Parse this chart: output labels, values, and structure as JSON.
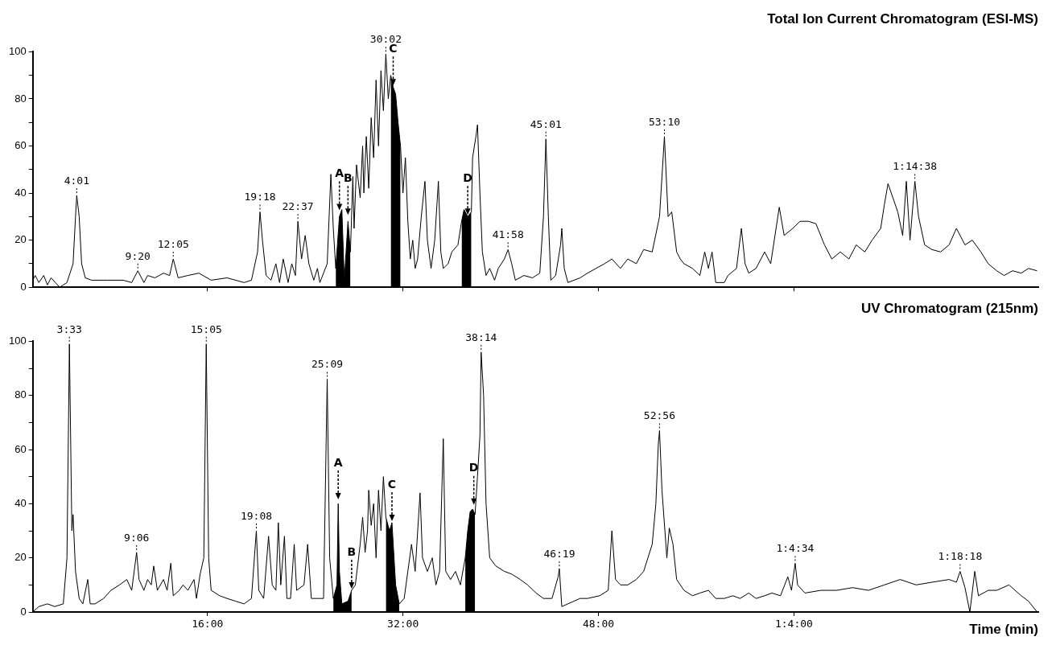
{
  "chart_data": [
    {
      "type": "line",
      "title": "Total Ion Current Chromatogram (ESI-MS)",
      "marker": "none",
      "tick_labels": "y",
      "xlim": [
        1.7,
        84
      ],
      "xticks": [
        {
          "value": 16,
          "label": null
        },
        {
          "value": 32,
          "label": null
        },
        {
          "value": 48,
          "label": null
        },
        {
          "value": 64,
          "label": null
        }
      ],
      "ylim": [
        0,
        100
      ],
      "yticks": [
        0,
        {
          "value": 10,
          "label": null
        },
        20,
        {
          "value": 30,
          "label": null
        },
        40,
        {
          "value": 50,
          "label": null
        },
        60,
        {
          "value": 70,
          "label": null
        },
        80,
        {
          "value": 90,
          "label": null
        },
        100
      ],
      "series": [
        {
          "type": "line",
          "color": "#000000",
          "x": [
            1.7,
            1.9,
            2.2,
            2.6,
            2.9,
            3.2,
            3.9,
            4.5,
            5.0,
            5.2,
            5.3,
            5.5,
            5.7,
            6.0,
            6.5,
            7.8,
            9.1,
            9.8,
            10.3,
            10.8,
            11.1,
            11.7,
            12.4,
            12.9,
            13.2,
            13.6,
            14.4,
            15.3,
            16.3,
            17.6,
            19.0,
            19.6,
            20.1,
            20.3,
            20.5,
            20.8,
            21.2,
            21.6,
            21.9,
            22.2,
            22.6,
            22.9,
            23.2,
            23.4,
            23.7,
            24.0,
            24.3,
            24.7,
            25.0,
            25.2,
            25.8,
            26.1,
            26.3,
            26.5,
            26.8,
            27.0,
            27.2,
            27.5,
            27.7,
            27.9,
            28.0,
            28.2,
            28.5,
            28.7,
            28.8,
            29.0,
            29.2,
            29.4,
            29.6,
            29.8,
            30.0,
            30.2,
            30.4,
            30.6,
            30.8,
            31.0,
            31.2,
            31.4,
            31.6,
            31.8,
            32.0,
            32.2,
            32.4,
            32.6,
            32.8,
            33.0,
            33.2,
            33.5,
            33.8,
            34.0,
            34.3,
            34.6,
            34.9,
            35.1,
            35.3,
            35.7,
            36.0,
            36.5,
            36.8,
            37.0,
            37.3,
            37.6,
            37.7,
            38.0,
            38.1,
            38.3,
            38.5,
            38.8,
            39.1,
            39.5,
            39.8,
            40.3,
            40.6,
            40.9,
            41.2,
            41.9,
            42.6,
            43.2,
            43.5,
            43.7,
            43.9,
            44.1,
            44.5,
            44.9,
            45.0,
            45.2,
            45.5,
            46.5,
            47.1,
            47.8,
            48.5,
            49.1,
            49.8,
            50.4,
            51.1,
            51.7,
            52.4,
            53.0,
            53.4,
            53.7,
            54.0,
            54.4,
            54.7,
            55.0,
            55.7,
            56.3,
            56.7,
            57.0,
            57.3,
            57.6,
            58.3,
            58.6,
            59.3,
            59.7,
            60.0,
            60.3,
            60.9,
            61.6,
            62.1,
            62.8,
            63.2,
            63.9,
            64.5,
            65.2,
            65.8,
            66.5,
            67.1,
            67.8,
            68.5,
            69.1,
            69.8,
            70.4,
            71.1,
            71.4,
            71.7,
            72.1,
            72.5,
            72.9,
            73.2,
            73.5,
            73.9,
            74.2,
            74.7,
            75.3,
            76.0,
            76.7,
            77.3,
            78.0,
            78.6,
            79.3,
            79.9,
            80.6,
            81.2,
            81.9,
            82.6,
            83.2,
            83.9
          ],
          "values": [
            3,
            5,
            2,
            5,
            1,
            4,
            0,
            2,
            10,
            30,
            39,
            30,
            10,
            4,
            3,
            3,
            3,
            2,
            7,
            2,
            5,
            4,
            6,
            5,
            12,
            4,
            5,
            6,
            3,
            4,
            2,
            3,
            15,
            32,
            20,
            5,
            3,
            10,
            2,
            12,
            2,
            10,
            5,
            28,
            12,
            22,
            10,
            3,
            8,
            2,
            10,
            48,
            25,
            8,
            30,
            33,
            3,
            28,
            15,
            47,
            25,
            52,
            38,
            60,
            40,
            64,
            42,
            72,
            55,
            88,
            60,
            92,
            75,
            99,
            80,
            90,
            85,
            82,
            70,
            60,
            40,
            55,
            28,
            12,
            20,
            8,
            12,
            30,
            45,
            20,
            8,
            20,
            45,
            15,
            8,
            10,
            15,
            18,
            28,
            33,
            30,
            32,
            55,
            65,
            69,
            40,
            15,
            5,
            8,
            3,
            8,
            12,
            16,
            10,
            3,
            5,
            4,
            6,
            30,
            63,
            30,
            3,
            5,
            18,
            25,
            8,
            2,
            4,
            6,
            8,
            10,
            12,
            8,
            12,
            10,
            16,
            15,
            30,
            64,
            30,
            32,
            15,
            12,
            10,
            8,
            5,
            15,
            8,
            15,
            2,
            2,
            5,
            8,
            25,
            10,
            6,
            8,
            15,
            10,
            34,
            22,
            25,
            28,
            28,
            27,
            18,
            12,
            15,
            12,
            18,
            15,
            20,
            25,
            35,
            44,
            38,
            32,
            22,
            45,
            20,
            45,
            30,
            18,
            16,
            15,
            18,
            25,
            18,
            20,
            15,
            10,
            7,
            5,
            7,
            6,
            8,
            7
          ]
        },
        {
          "type": "area",
          "color": "#000000",
          "x": [
            26.5,
            26.8,
            27.0,
            27.2,
            27.5,
            27.7
          ],
          "values": [
            8,
            30,
            33,
            3,
            28,
            15
          ]
        },
        {
          "type": "area",
          "color": "#000000",
          "x": [
            31.0,
            31.2,
            31.4,
            31.6,
            31.8
          ],
          "values": [
            90,
            85,
            82,
            70,
            60
          ]
        },
        {
          "type": "area",
          "color": "#000000",
          "x": [
            36.8,
            37.0,
            37.3,
            37.6
          ],
          "values": [
            28,
            33,
            30,
            32
          ]
        }
      ],
      "annotations": [
        {
          "text": "4:01",
          "x": 5.3,
          "y": 39
        },
        {
          "text": "9:20",
          "x": 10.3,
          "y": 7
        },
        {
          "text": "12:05",
          "x": 13.2,
          "y": 12
        },
        {
          "text": "19:18",
          "x": 20.3,
          "y": 32
        },
        {
          "text": "22:37",
          "x": 23.4,
          "y": 28
        },
        {
          "text": "30:02",
          "x": 30.6,
          "y": 99
        },
        {
          "text": "41:58",
          "x": 40.6,
          "y": 16
        },
        {
          "text": "45:01",
          "x": 43.7,
          "y": 63
        },
        {
          "text": "53:10",
          "x": 53.4,
          "y": 64
        },
        {
          "text": "1:14:38",
          "x": 73.9,
          "y": 45
        },
        {
          "text": "A",
          "x": 26.8,
          "y": 32
        },
        {
          "text": "B",
          "x": 27.5,
          "y": 30
        },
        {
          "text": "C",
          "x": 31.2,
          "y": 85
        },
        {
          "text": "D",
          "x": 37.3,
          "y": 30
        }
      ]
    },
    {
      "type": "line",
      "title": "UV Chromatogram (215nm)",
      "xlabel": "Time (min)",
      "marker": "none",
      "xlim": [
        1.7,
        84
      ],
      "xticks": [
        {
          "value": 16,
          "label": "16:00"
        },
        {
          "value": 32,
          "label": "32:00"
        },
        {
          "value": 48,
          "label": "48:00"
        },
        {
          "value": 64,
          "label": "1:4:00"
        }
      ],
      "ylim": [
        0,
        100
      ],
      "yticks": [
        0,
        {
          "value": 10,
          "label": null
        },
        20,
        {
          "value": 30,
          "label": null
        },
        40,
        {
          "value": 50,
          "label": null
        },
        60,
        {
          "value": 70,
          "label": null
        },
        80,
        {
          "value": 90,
          "label": null
        },
        100
      ],
      "series": [
        {
          "type": "line",
          "color": "#000000",
          "x": [
            1.7,
            2.2,
            2.9,
            3.5,
            4.2,
            4.5,
            4.7,
            4.9,
            5.0,
            5.2,
            5.5,
            5.8,
            6.2,
            6.4,
            6.8,
            7.5,
            8.1,
            8.8,
            9.4,
            9.8,
            10.2,
            10.4,
            10.8,
            11.1,
            11.4,
            11.6,
            11.9,
            12.4,
            12.7,
            13.0,
            13.2,
            13.7,
            14.0,
            14.4,
            14.9,
            15.1,
            15.4,
            15.7,
            15.9,
            16.1,
            16.3,
            17.0,
            17.6,
            18.3,
            19.0,
            19.6,
            20.0,
            20.2,
            20.6,
            21.0,
            21.3,
            21.6,
            21.8,
            22.0,
            22.3,
            22.5,
            22.8,
            23.1,
            23.3,
            23.9,
            24.2,
            24.5,
            24.9,
            25.5,
            25.8,
            26.0,
            26.3,
            26.6,
            26.7,
            26.8,
            27.0,
            27.5,
            27.8,
            28.1,
            28.5,
            28.7,
            28.9,
            29.1,
            29.2,
            29.4,
            29.6,
            29.8,
            30.0,
            30.2,
            30.4,
            30.6,
            30.9,
            31.1,
            31.4,
            31.7,
            32.1,
            32.4,
            32.7,
            33.0,
            33.4,
            33.6,
            34.0,
            34.4,
            34.7,
            35.0,
            35.3,
            35.5,
            35.9,
            36.3,
            36.7,
            37.1,
            37.3,
            37.5,
            37.7,
            37.9,
            38.1,
            38.3,
            38.4,
            38.6,
            38.8,
            39.1,
            39.6,
            40.3,
            40.9,
            41.6,
            42.2,
            42.9,
            43.5,
            44.2,
            44.7,
            44.8,
            45.0,
            45.5,
            46.5,
            47.1,
            48.1,
            48.8,
            49.1,
            49.4,
            49.8,
            50.4,
            51.1,
            51.7,
            52.4,
            52.7,
            52.9,
            53.0,
            53.2,
            53.6,
            53.8,
            54.1,
            54.4,
            55.0,
            55.7,
            56.3,
            57.0,
            57.6,
            58.3,
            59.0,
            59.6,
            60.3,
            60.9,
            61.6,
            62.2,
            62.9,
            63.5,
            63.8,
            64.1,
            64.3,
            64.9,
            66.2,
            67.5,
            68.8,
            70.1,
            71.4,
            72.7,
            74.0,
            75.3,
            76.7,
            77.3,
            77.6,
            78.0,
            78.4,
            78.8,
            79.1,
            79.9,
            80.6,
            81.6,
            82.6,
            83.2,
            83.9
          ],
          "values": [
            0,
            2,
            3,
            2,
            3,
            20,
            99,
            30,
            36,
            15,
            5,
            3,
            12,
            3,
            3,
            5,
            8,
            10,
            12,
            8,
            22,
            12,
            8,
            12,
            10,
            17,
            8,
            12,
            8,
            18,
            6,
            8,
            10,
            8,
            12,
            5,
            14,
            20,
            99,
            20,
            8,
            6,
            5,
            4,
            3,
            5,
            30,
            8,
            5,
            28,
            10,
            8,
            33,
            10,
            28,
            5,
            5,
            25,
            8,
            10,
            25,
            5,
            5,
            5,
            86,
            20,
            5,
            10,
            40,
            15,
            3,
            4,
            8,
            10,
            25,
            35,
            22,
            30,
            45,
            32,
            40,
            20,
            45,
            30,
            50,
            35,
            30,
            33,
            10,
            3,
            5,
            15,
            25,
            15,
            44,
            20,
            15,
            20,
            10,
            15,
            64,
            15,
            12,
            15,
            10,
            20,
            30,
            37,
            38,
            36,
            50,
            65,
            96,
            80,
            40,
            20,
            17,
            15,
            14,
            12,
            10,
            7,
            5,
            5,
            13,
            16,
            2,
            3,
            5,
            5,
            6,
            8,
            30,
            12,
            10,
            10,
            12,
            15,
            25,
            40,
            62,
            67,
            45,
            20,
            31,
            25,
            12,
            8,
            6,
            7,
            8,
            5,
            5,
            6,
            5,
            7,
            5,
            6,
            7,
            6,
            13,
            8,
            18,
            10,
            7,
            8,
            8,
            9,
            8,
            10,
            12,
            10,
            11,
            12,
            11,
            15,
            9,
            0,
            15,
            6,
            8,
            8,
            10,
            6,
            4,
            0
          ]
        },
        {
          "type": "area",
          "color": "#000000",
          "x": [
            26.3,
            26.6,
            26.7,
            26.8,
            27.0,
            27.5,
            27.8
          ],
          "values": [
            5,
            10,
            40,
            15,
            3,
            4,
            8
          ]
        },
        {
          "type": "area",
          "color": "#000000",
          "x": [
            30.6,
            30.9,
            31.1,
            31.4,
            31.7
          ],
          "values": [
            35,
            30,
            33,
            10,
            3
          ]
        },
        {
          "type": "area",
          "color": "#000000",
          "x": [
            37.1,
            37.3,
            37.5,
            37.7,
            37.9
          ],
          "values": [
            20,
            30,
            37,
            38,
            36
          ]
        }
      ],
      "annotations": [
        {
          "text": "3:33",
          "x": 4.7,
          "y": 99
        },
        {
          "text": "9:06",
          "x": 10.2,
          "y": 22
        },
        {
          "text": "15:05",
          "x": 15.9,
          "y": 99
        },
        {
          "text": "19:08",
          "x": 20.0,
          "y": 30
        },
        {
          "text": "25:09",
          "x": 25.8,
          "y": 86
        },
        {
          "text": "38:14",
          "x": 38.4,
          "y": 96
        },
        {
          "text": "46:19",
          "x": 44.8,
          "y": 16
        },
        {
          "text": "52:56",
          "x": 53.0,
          "y": 67
        },
        {
          "text": "1:4:34",
          "x": 64.1,
          "y": 18
        },
        {
          "text": "1:18:18",
          "x": 77.6,
          "y": 15
        },
        {
          "text": "A",
          "x": 26.7,
          "y": 41
        },
        {
          "text": "B",
          "x": 27.8,
          "y": 8
        },
        {
          "text": "C",
          "x": 31.1,
          "y": 33
        },
        {
          "text": "D",
          "x": 37.8,
          "y": 39
        }
      ]
    }
  ]
}
